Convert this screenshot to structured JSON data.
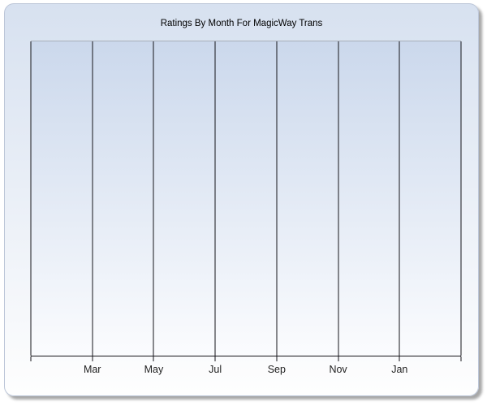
{
  "window": {
    "background": "#ffffff"
  },
  "chart": {
    "title": "Ratings By Month For MagicWay Trans",
    "colors": {
      "panel_gradient_top": "#d7e1f0",
      "panel_gradient_bottom": "#fefefe",
      "panel_border": "#bcc6d8",
      "panel_shadow": "rgba(0,0,0,0.35)",
      "plot_gradient_top": "#cbd8ec",
      "plot_gradient_bottom": "#fbfcfe",
      "plot_top_border": "#a8aeba",
      "gridline": "#15151a",
      "axis_line": "#15151a",
      "tick": "#15151a",
      "title_text": "#000000",
      "axis_label_text": "#222222"
    }
  },
  "chart_data": {
    "type": "line",
    "title": "Ratings By Month For MagicWay Trans",
    "xlabel": "",
    "ylabel": "",
    "x_tick_labels": [
      "Mar",
      "May",
      "Jul",
      "Sep",
      "Nov",
      "Jan"
    ],
    "x_gridline_count": 8,
    "labeled_gridline_indexes": [
      1,
      2,
      3,
      4,
      5,
      6
    ],
    "y_tick_labels": [],
    "series": [],
    "legend": "none",
    "grid": "vertical-gridlines-only",
    "plot_state": "empty - no data series rendered"
  }
}
